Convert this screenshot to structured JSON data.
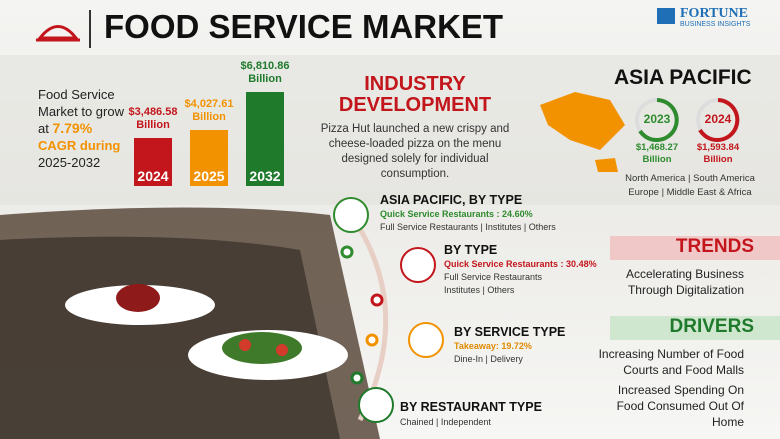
{
  "header": {
    "title": "FOOD SERVICE MARKET",
    "brand": "FORTUNE",
    "brand_sub": "BUSINESS INSIGHTS"
  },
  "growth": {
    "text1": "Food Service Market to grow at",
    "cagr": "7.79%",
    "cagr_suffix": "CAGR during",
    "period": "2025-2032"
  },
  "market_size": {
    "categories": [
      "2024",
      "2025",
      "2032"
    ],
    "values": [
      3486.58,
      4027.61,
      6810.86
    ],
    "value_labels": [
      "$3,486.58 Billion",
      "$4,027.61 Billion",
      "$6,810.86 Billion"
    ],
    "colors": [
      "#c3161c",
      "#f39200",
      "#1f7a2c"
    ]
  },
  "industry": {
    "title": "INDUSTRY DEVELOPMENT",
    "text": "Pizza Hut launched a new crispy and cheese-loaded pizza on the menu designed solely for individual consumption."
  },
  "region": {
    "title": "ASIA PACIFIC",
    "years": [
      {
        "year": "2023",
        "value": "$1,468.27 Billion"
      },
      {
        "year": "2024",
        "value": "$1,593.84 Billion"
      }
    ],
    "regions": [
      "North America | South America",
      "Europe | Middle East & Africa"
    ]
  },
  "segments": [
    {
      "title": "ASIA PACIFIC, BY TYPE",
      "highlight": "Quick Service Restaurants : 24.60%",
      "others": "Full Service Restaurants | Institutes | Others"
    },
    {
      "title": "BY TYPE",
      "highlight": "Quick Service Restaurants : 30.48%",
      "others": "Full Service Restaurants Institutes | Others"
    },
    {
      "title": "BY SERVICE TYPE",
      "highlight": "Takeaway: 19.72%",
      "others": "Dine-In | Delivery"
    },
    {
      "title": "BY RESTAURANT TYPE",
      "highlight": null,
      "others": "Chained | Independent"
    }
  ],
  "trends": {
    "title": "TRENDS",
    "items": [
      "Accelerating Business Through Digitalization"
    ]
  },
  "drivers": {
    "title": "DRIVERS",
    "items": [
      "Increasing Number of Food Courts and Food Malls",
      "Increased Spending On Food Consumed Out Of Home"
    ]
  }
}
